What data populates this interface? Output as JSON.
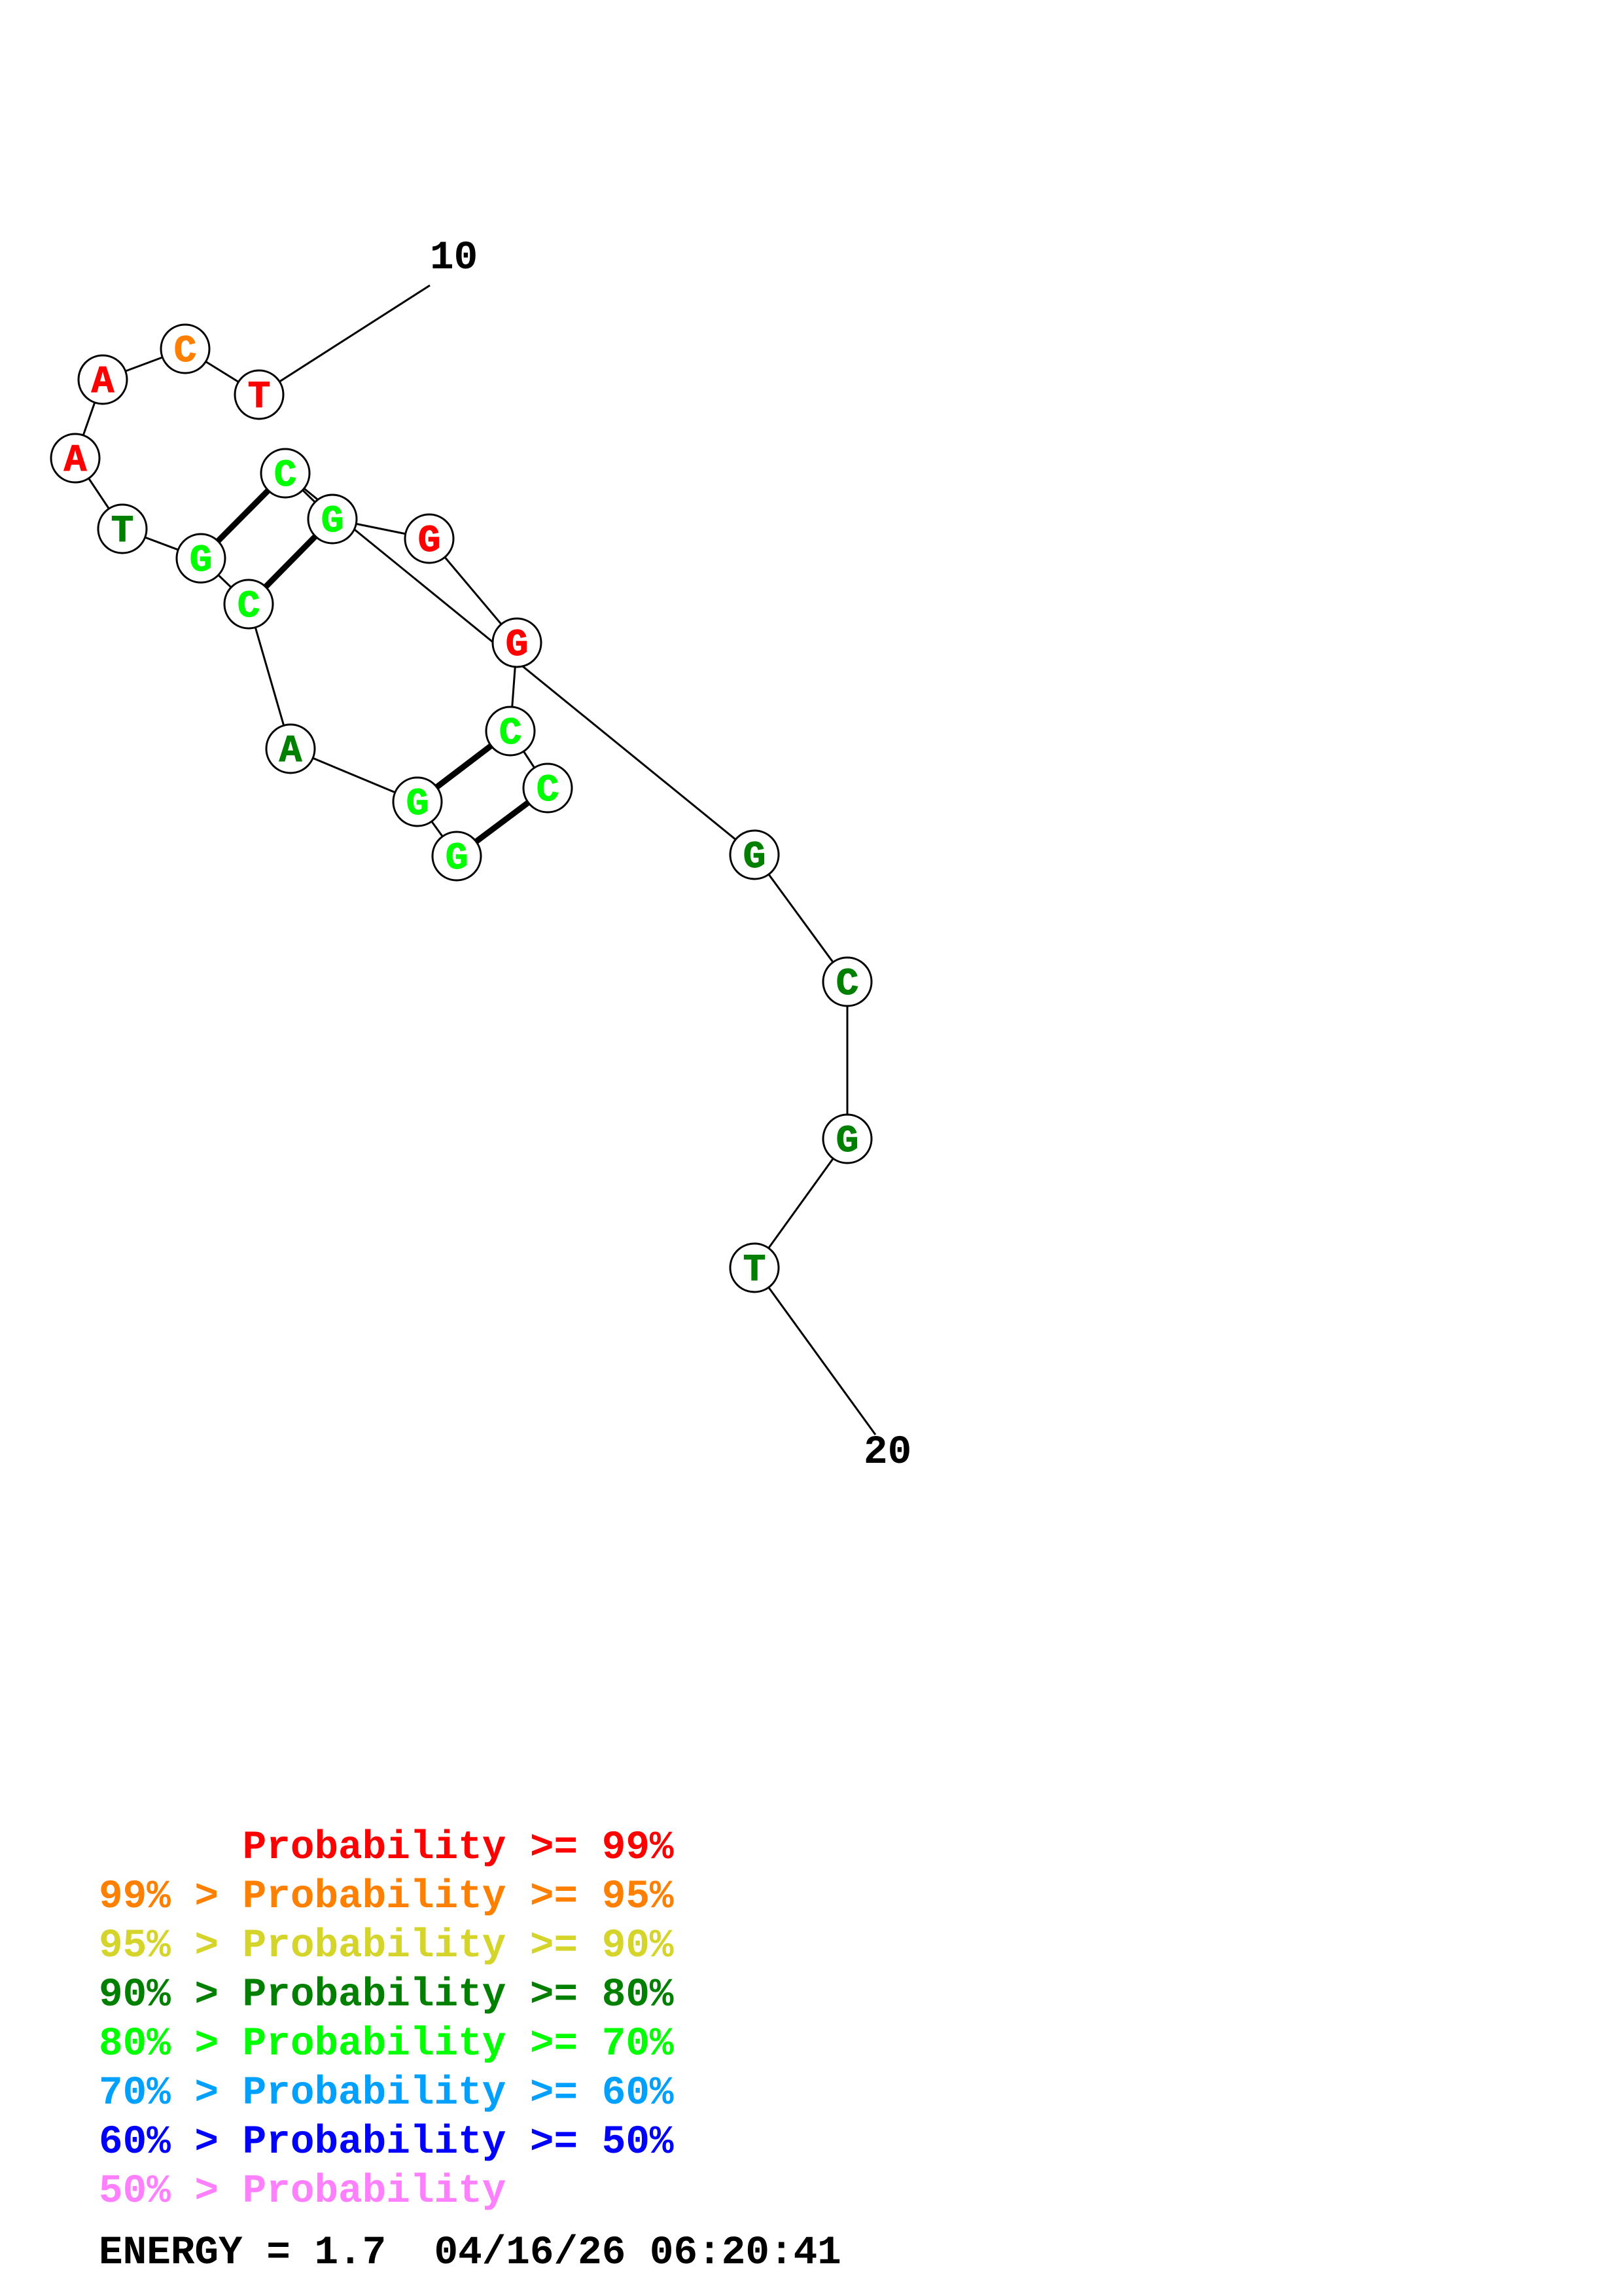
{
  "structure": {
    "labels": {
      "start": "10",
      "end": "20"
    },
    "bases": [
      {
        "letter": "T",
        "prob_class": "p99"
      },
      {
        "letter": "C",
        "prob_class": "p95"
      },
      {
        "letter": "A",
        "prob_class": "p99"
      },
      {
        "letter": "A",
        "prob_class": "p99"
      },
      {
        "letter": "T",
        "prob_class": "p80"
      },
      {
        "letter": "G",
        "prob_class": "p70"
      },
      {
        "letter": "C",
        "prob_class": "p70"
      },
      {
        "letter": "A",
        "prob_class": "p80"
      },
      {
        "letter": "G",
        "prob_class": "p70"
      },
      {
        "letter": "G",
        "prob_class": "p70"
      },
      {
        "letter": "C",
        "prob_class": "p70"
      },
      {
        "letter": "C",
        "prob_class": "p70"
      },
      {
        "letter": "G",
        "prob_class": "p99"
      },
      {
        "letter": "G",
        "prob_class": "p99"
      },
      {
        "letter": "G",
        "prob_class": "p70"
      },
      {
        "letter": "C",
        "prob_class": "p70"
      },
      {
        "letter": "G",
        "prob_class": "p80"
      },
      {
        "letter": "C",
        "prob_class": "p80"
      },
      {
        "letter": "G",
        "prob_class": "p80"
      },
      {
        "letter": "T",
        "prob_class": "p80"
      }
    ]
  },
  "legend": [
    {
      "text": "      Probability >= 99%",
      "color": "#ff0000"
    },
    {
      "text": "99% > Probability >= 95%",
      "color": "#ff8000"
    },
    {
      "text": "95% > Probability >= 90%",
      "color": "#d4d42a"
    },
    {
      "text": "90% > Probability >= 80%",
      "color": "#007f00"
    },
    {
      "text": "80% > Probability >= 70%",
      "color": "#00ff00"
    },
    {
      "text": "70% > Probability >= 60%",
      "color": "#00a0ff"
    },
    {
      "text": "60% > Probability >= 50%",
      "color": "#0000ff"
    },
    {
      "text": "50% > Probability",
      "color": "#ff80ff"
    }
  ],
  "footer": {
    "text": "ENERGY = 1.7  04/16/26 06:20:41",
    "color": "#000000"
  },
  "colors": {
    "p99": "#ff0000",
    "p95": "#ff8000",
    "p90": "#d4d42a",
    "p80": "#007f00",
    "p70": "#00ff00",
    "p60": "#00a0ff",
    "p50": "#0000ff",
    "plow": "#ff80ff"
  }
}
